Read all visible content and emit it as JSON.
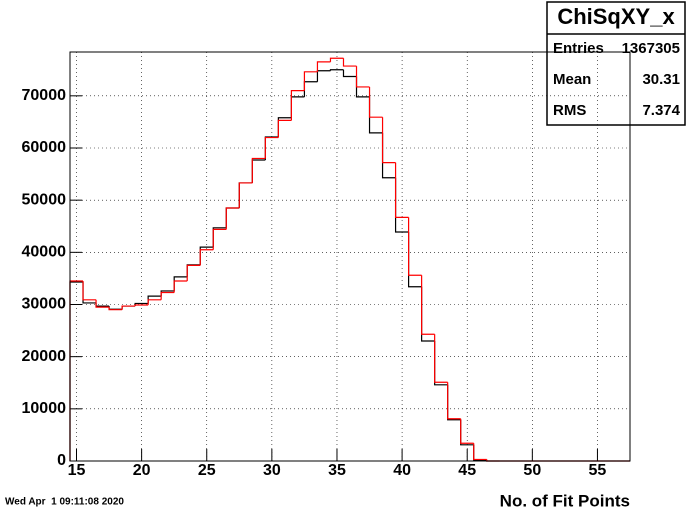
{
  "chart_data": {
    "type": "histogram",
    "x_label": "No. of Fit Points",
    "timestamp": "Wed Apr  1 09:11:08 2020",
    "bins": [
      14.5,
      15.5,
      16.5,
      17.5,
      18.5,
      19.5,
      20.5,
      21.5,
      22.5,
      23.5,
      24.5,
      25.5,
      26.5,
      27.5,
      28.5,
      29.5,
      30.5,
      31.5,
      32.5,
      33.5,
      34.5,
      35.5,
      36.5,
      37.5,
      38.5,
      39.5,
      40.5,
      41.5,
      42.5,
      43.5,
      44.5,
      45.5,
      46.5,
      47.5,
      48.5,
      49.5,
      50.5,
      51.5,
      52.5,
      53.5,
      54.5,
      55.5,
      56.5,
      57.5
    ],
    "series": [
      {
        "color": "#000000",
        "values": [
          34300,
          30300,
          29700,
          29100,
          29700,
          30200,
          31600,
          32600,
          35300,
          37600,
          41000,
          44700,
          48500,
          53300,
          57700,
          62100,
          65800,
          69800,
          72700,
          74800,
          75000,
          73700,
          69800,
          62900,
          54300,
          43900,
          33400,
          23000,
          14600,
          7900,
          3100,
          200,
          0,
          0,
          0,
          0,
          0,
          0,
          0,
          0,
          0,
          0,
          0
        ]
      },
      {
        "color": "#ff0000",
        "values": [
          34500,
          30900,
          29500,
          29000,
          29700,
          29900,
          30900,
          32300,
          34500,
          37500,
          40500,
          44400,
          48500,
          53300,
          58000,
          62000,
          65300,
          71000,
          74600,
          76500,
          77200,
          75700,
          71700,
          65900,
          57200,
          46700,
          35600,
          24300,
          15100,
          8100,
          3400,
          300,
          0,
          0,
          0,
          0,
          0,
          0,
          0,
          0,
          0,
          0,
          0
        ]
      }
    ],
    "xlim": [
      14.5,
      57.5
    ],
    "ylim": [
      0,
      78400
    ],
    "xticks": [
      15,
      20,
      25,
      30,
      35,
      40,
      45,
      50,
      55
    ],
    "yticks": [
      0,
      10000,
      20000,
      30000,
      40000,
      50000,
      60000,
      70000
    ],
    "grid": true,
    "stats": {
      "title": "ChiSqXY_x",
      "rows": [
        {
          "label": "Entries",
          "value": 1367305
        },
        {
          "label": "Mean",
          "value": 30.31
        },
        {
          "label": "RMS",
          "value": 7.374
        }
      ]
    }
  }
}
